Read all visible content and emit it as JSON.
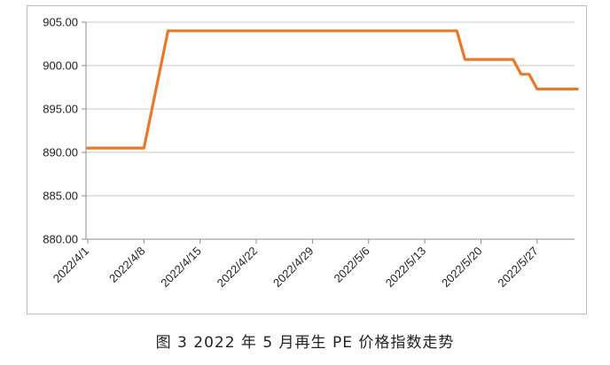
{
  "caption": "图 3  2022 年 5 月再生 PE 价格指数走势",
  "chart_data": {
    "type": "line",
    "title": "",
    "xlabel": "",
    "ylabel": "",
    "ylim": [
      880,
      905
    ],
    "yticks": [
      "905.00",
      "900.00",
      "895.00",
      "890.00",
      "885.00",
      "880.00"
    ],
    "xticks": [
      "2022/4/1",
      "2022/4/8",
      "2022/4/15",
      "2022/4/22",
      "2022/4/29",
      "2022/5/6",
      "2022/5/13",
      "2022/5/20",
      "2022/5/27"
    ],
    "grid": true,
    "line_color": "#e8782a",
    "series": [
      {
        "values": [
          {
            "x": "2022/4/1",
            "y": 890.5
          },
          {
            "x": "2022/4/8",
            "y": 890.5
          },
          {
            "x": "2022/4/11",
            "y": 904.0
          },
          {
            "x": "2022/5/17",
            "y": 904.0
          },
          {
            "x": "2022/5/18",
            "y": 900.7
          },
          {
            "x": "2022/5/24",
            "y": 900.7
          },
          {
            "x": "2022/5/25",
            "y": 899.0
          },
          {
            "x": "2022/5/26",
            "y": 899.0
          },
          {
            "x": "2022/5/27",
            "y": 897.3
          },
          {
            "x": "2022/6/1",
            "y": 897.3
          }
        ]
      }
    ]
  }
}
